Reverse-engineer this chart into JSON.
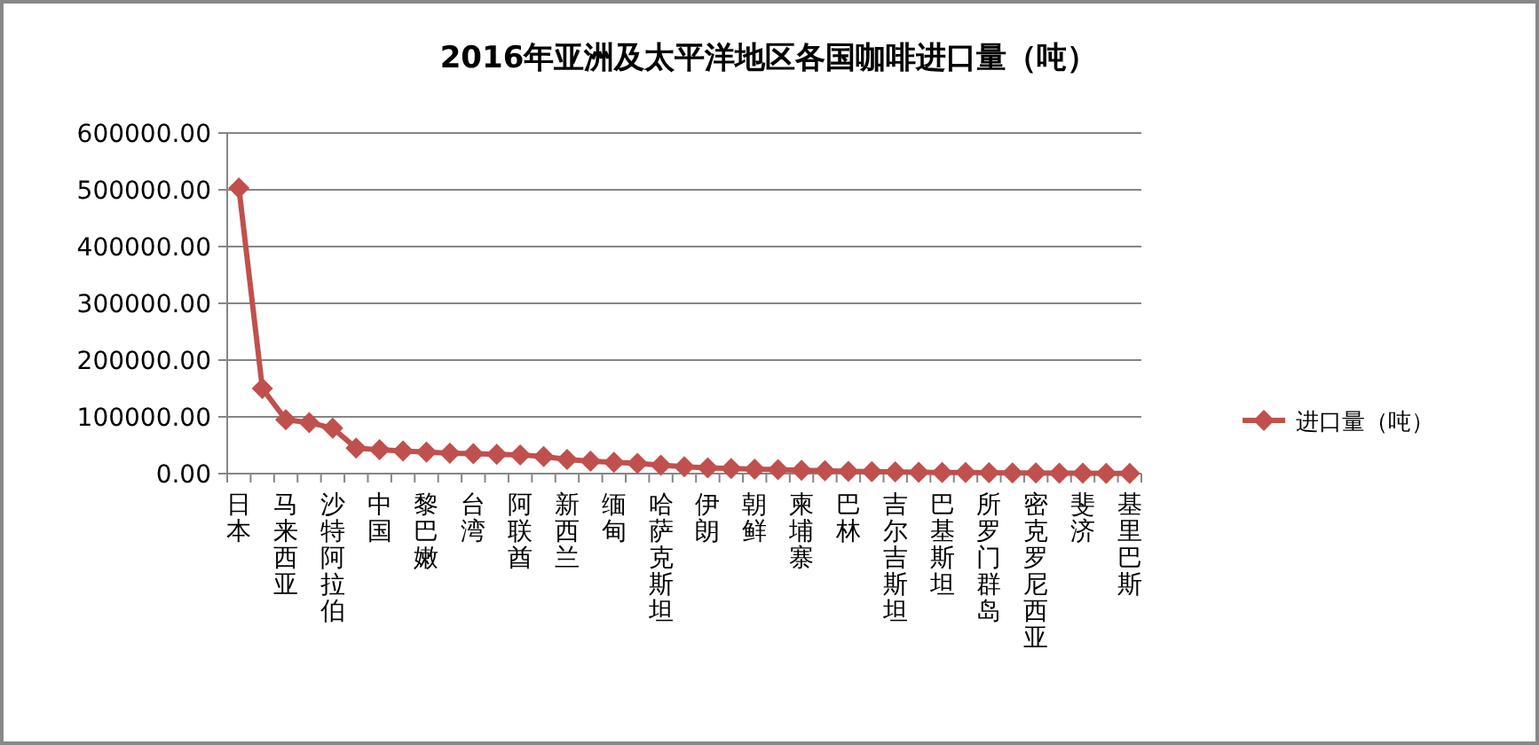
{
  "chart_data": {
    "type": "line",
    "title": "2016年亚洲及太平洋地区各国咖啡进口量（吨）",
    "categories": [
      "日本",
      null,
      "马来西亚",
      null,
      "沙特阿拉伯",
      null,
      "中国",
      null,
      "黎巴嫩",
      null,
      "台湾",
      null,
      "阿联酋",
      null,
      "新西兰",
      null,
      "缅甸",
      null,
      "哈萨克斯坦",
      null,
      "伊朗",
      null,
      "朝鲜",
      null,
      "柬埔寨",
      null,
      "巴林",
      null,
      "吉尔吉斯坦",
      null,
      "巴基斯坦",
      null,
      "所罗门群岛",
      null,
      "密克罗尼西亚",
      null,
      "斐济",
      null,
      "基里巴斯"
    ],
    "series": [
      {
        "name": "进口量（吨）",
        "color": "#c0504d",
        "values": [
          503000,
          150000,
          95000,
          90000,
          80000,
          45000,
          42000,
          40000,
          38000,
          36000,
          35000,
          34000,
          33000,
          30000,
          25000,
          22000,
          20000,
          18000,
          15000,
          12000,
          10000,
          9000,
          8000,
          7000,
          6000,
          5000,
          4000,
          3500,
          3000,
          2500,
          2000,
          1800,
          1500,
          1200,
          1000,
          800,
          600,
          400,
          200
        ]
      }
    ],
    "ylim": [
      0,
      600000
    ],
    "yticks": [
      {
        "value": 0,
        "label": "0.00"
      },
      {
        "value": 100000,
        "label": "100000.00"
      },
      {
        "value": 200000,
        "label": "200000.00"
      },
      {
        "value": 300000,
        "label": "300000.00"
      },
      {
        "value": 400000,
        "label": "400000.00"
      },
      {
        "value": 500000,
        "label": "500000.00"
      },
      {
        "value": 600000,
        "label": "600000.00"
      }
    ],
    "grid": "y",
    "legend": "right",
    "marker": "diamond",
    "line_style": "solid"
  }
}
